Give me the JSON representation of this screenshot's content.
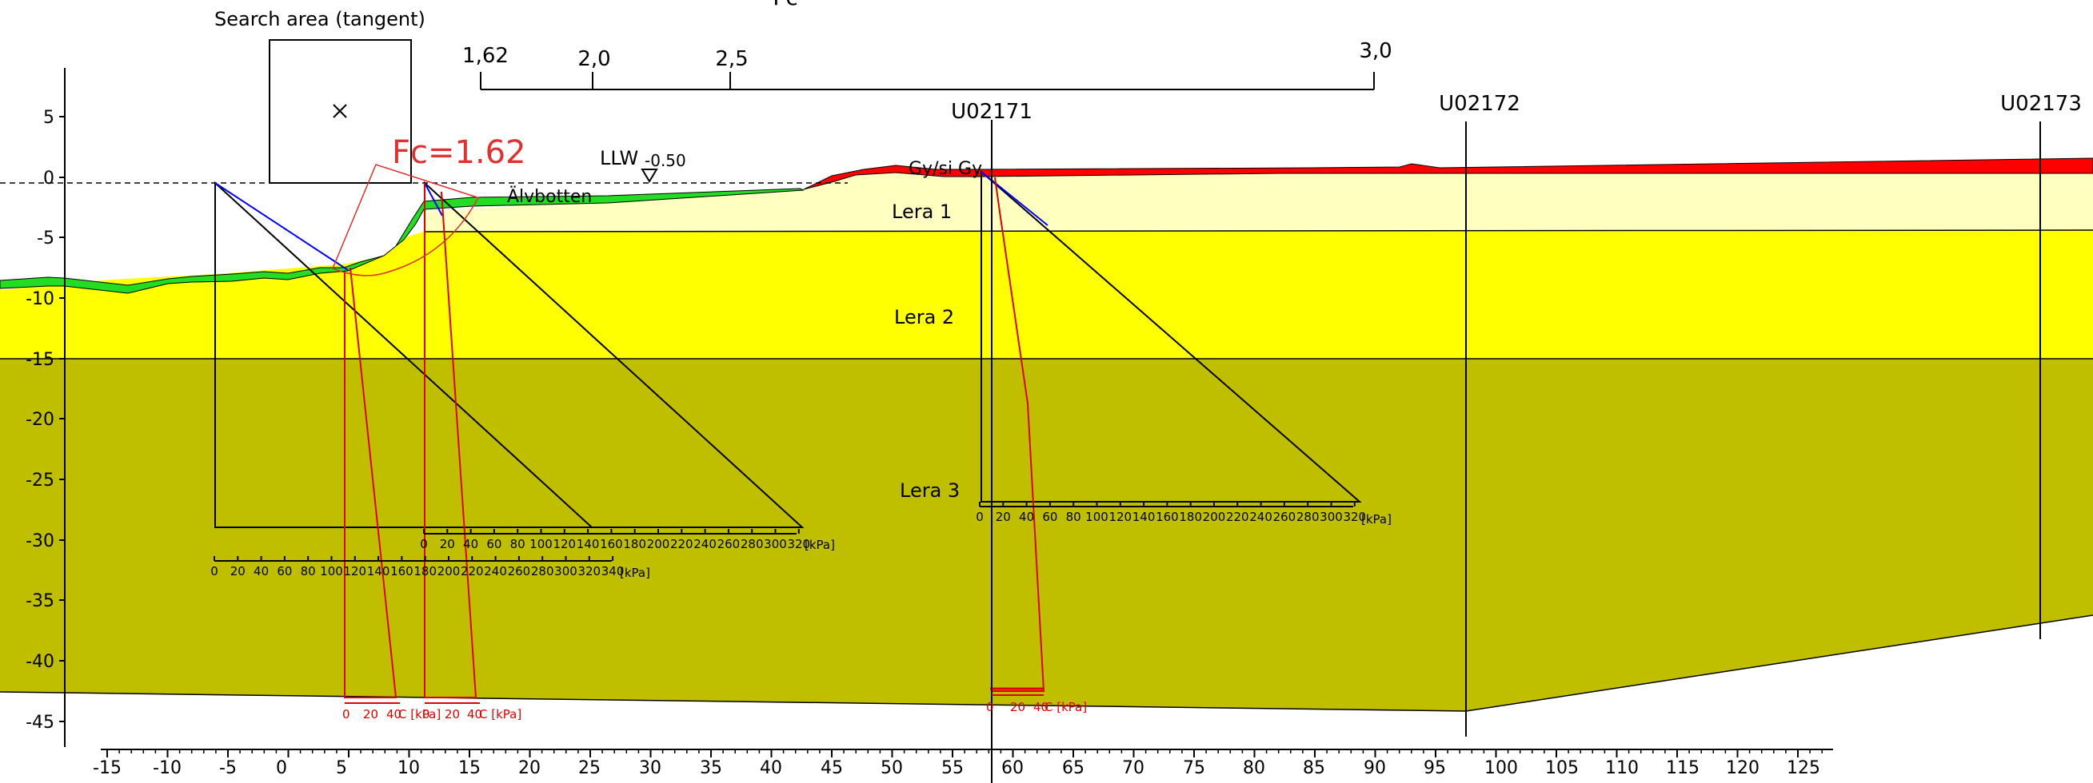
{
  "header": {
    "fc_title_partial": "Fc",
    "search_area_label": "Search area (tangent)",
    "fc_result_label": "Fc=1.62",
    "llw_label": "LLW",
    "llw_value": "-0.50",
    "fc_scale_ticks": [
      "1,62",
      "2,0",
      "2,5",
      "3,0"
    ]
  },
  "boreholes": [
    "U02171",
    "U02172",
    "U02173"
  ],
  "layers": {
    "fill_label": "Gy/si Gy",
    "riverbed_label": "Älvbotten",
    "lera1": "Lera 1",
    "lera2": "Lera 2",
    "lera3": "Lera 3"
  },
  "colors": {
    "fill_red": "#ff0000",
    "riverbed_green": "#22dd22",
    "lera1_lightyellow": "#ffffc0",
    "lera2_yellow": "#ffff00",
    "lera3_olive": "#bfbf00",
    "slip_surface": "#e03030",
    "pressure_line": "#0000ff",
    "shear_profile": "#e00000"
  },
  "axes": {
    "y_ticks": [
      "5",
      "0",
      "-5",
      "-10",
      "-15",
      "-20",
      "-25",
      "-30",
      "-35",
      "-40",
      "-45"
    ],
    "x_ticks": [
      "-15",
      "-10",
      "-5",
      "0",
      "5",
      "10",
      "15",
      "20",
      "25",
      "30",
      "35",
      "40",
      "45",
      "50",
      "55",
      "60",
      "65",
      "70",
      "75",
      "80",
      "85",
      "90",
      "95",
      "100",
      "105",
      "110",
      "115",
      "120",
      "125"
    ]
  },
  "diagrams": {
    "kpa_unit": "[kPa]",
    "c_kpa_unit": "C [kPa]",
    "scale1_ticks": [
      "0",
      "20",
      "40",
      "60",
      "80",
      "100",
      "120",
      "140",
      "160",
      "180",
      "200",
      "220",
      "240",
      "260",
      "280",
      "300",
      "320",
      "340"
    ],
    "scale2_ticks": [
      "0",
      "20",
      "40",
      "60",
      "80",
      "100",
      "120",
      "140",
      "160",
      "180",
      "200",
      "220",
      "240",
      "260",
      "280",
      "300",
      "320"
    ],
    "scale3_ticks": [
      "0",
      "20",
      "40",
      "60",
      "80",
      "100",
      "120",
      "140",
      "160",
      "180",
      "200",
      "220",
      "240",
      "260",
      "280",
      "300",
      "320"
    ],
    "c_scale_ticks": [
      "0",
      "20",
      "40"
    ]
  }
}
